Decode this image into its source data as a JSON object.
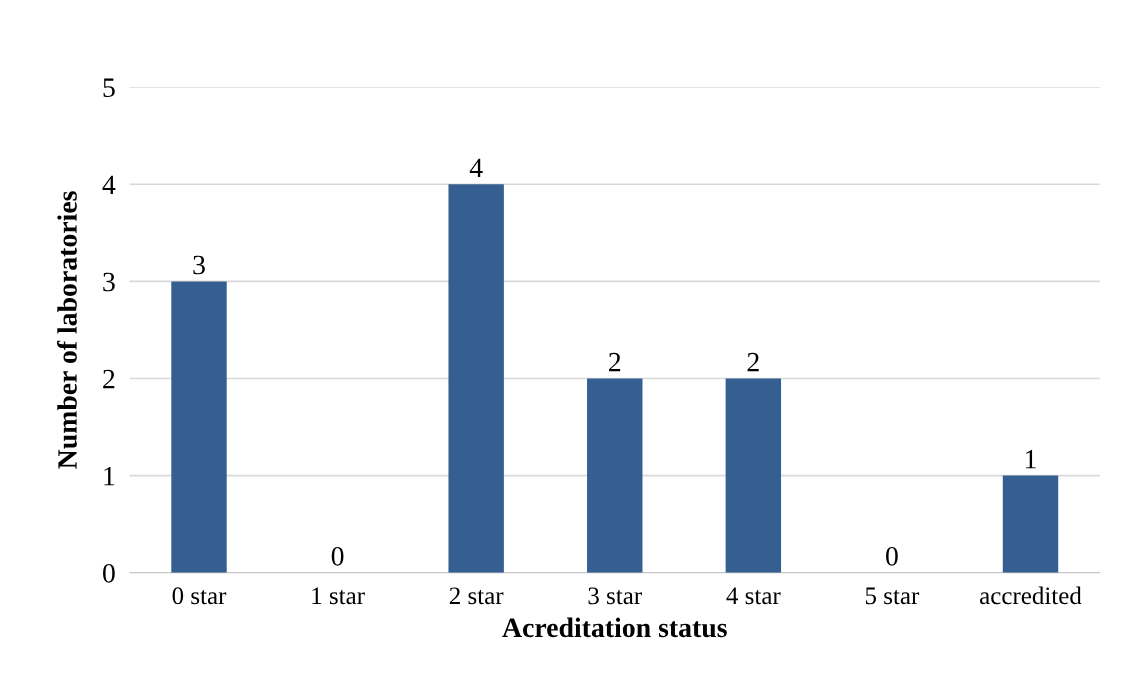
{
  "chart_data": {
    "type": "bar",
    "xlabel": "Acreditation status",
    "ylabel": "Number of laboratories",
    "categories": [
      "0 star",
      "1 star",
      "2 star",
      "3 star",
      "4 star",
      "5 star",
      "accredited"
    ],
    "values": [
      3,
      0,
      4,
      2,
      2,
      0,
      1
    ],
    "color": "#365f91",
    "ylim": [
      0,
      5
    ],
    "yticks": [
      0,
      1,
      2,
      3,
      4,
      5
    ],
    "grid": "y",
    "data_labels": true
  }
}
